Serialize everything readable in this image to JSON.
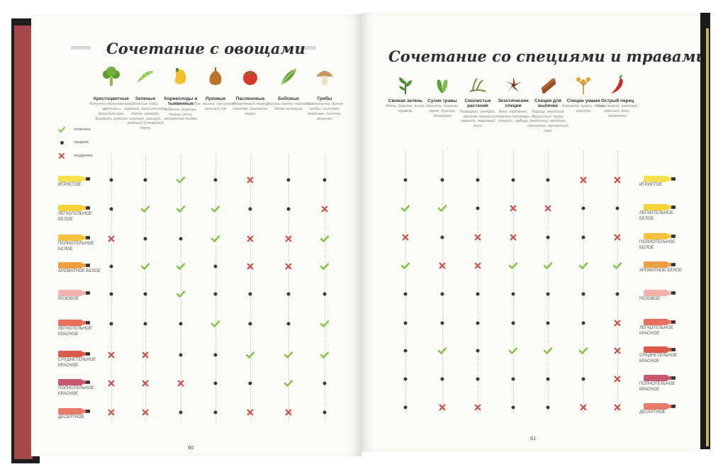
{
  "left_page": {
    "title": "Сочетание с овощами",
    "page_number": "60",
    "columns": [
      {
        "icon": "broccoli-icon",
        "name": "Крестоцветные",
        "desc": "Капуста обыкновенная, цветная и брюссельская, брокколи, руккола"
      },
      {
        "icon": "green-beans-icon",
        "name": "Зеленые",
        "desc": "Зеленые бобы, горошек, капуста кейл, латук, авокадо, шпинат, цикорий, зеленый болгарский перец"
      },
      {
        "icon": "squash-icon",
        "name": "Корнеплоды и тыквенные",
        "desc": "Кабачок, морковь, тыква, репа, мускатная тыква"
      },
      {
        "icon": "onion-icon",
        "name": "Луковые",
        "desc": "Лук, чеснок, лук-шалот, зеленый лук"
      },
      {
        "icon": "tomato-icon",
        "name": "Пасленовые",
        "desc": "Стручковый перец, помидор, баклажан, перец"
      },
      {
        "icon": "pea-pod-icon",
        "name": "Бобовые",
        "desc": "Фасоль пинто, черная и белая чечевица"
      },
      {
        "icon": "mushroom-icon",
        "name": "Грибы",
        "desc": "Шампиньоны, белые грибы, шиитаке, майтаке, лисички, вешенки"
      }
    ],
    "legend": [
      {
        "mark": "check",
        "label": "отличное"
      },
      {
        "mark": "dot",
        "label": "среднее"
      },
      {
        "mark": "cross",
        "label": "неудачное"
      }
    ],
    "rows": [
      {
        "wine": "ИГРИСТОЕ",
        "marks": [
          "dot",
          "dot",
          "check",
          "dot",
          "cross",
          "dot",
          "dot"
        ]
      },
      {
        "wine": "ЛЕГКОТЕЛЬНОЕ БЕЛОЕ",
        "marks": [
          "dot",
          "check",
          "check",
          "check",
          "dot",
          "dot",
          "cross"
        ]
      },
      {
        "wine": "ПОЛНОТЕЛЬНОЕ БЕЛОЕ",
        "marks": [
          "cross",
          "dot",
          "dot",
          "check",
          "cross",
          "cross",
          "check"
        ]
      },
      {
        "wine": "АРОМАТНОЕ БЕЛОЕ",
        "marks": [
          "dot",
          "check",
          "check",
          "dot",
          "cross",
          "cross",
          "check"
        ]
      },
      {
        "wine": "РОЗОВОЕ",
        "marks": [
          "dot",
          "dot",
          "check",
          "dot",
          "dot",
          "dot",
          "dot"
        ]
      },
      {
        "wine": "ЛЕГКОТЕЛЬНОЕ КРАСНОЕ",
        "marks": [
          "dot",
          "dot",
          "dot",
          "check",
          "dot",
          "dot",
          "check"
        ]
      },
      {
        "wine": "СРЕДНЕТЕЛЬНОЕ КРАСНОЕ",
        "marks": [
          "cross",
          "cross",
          "dot",
          "dot",
          "check",
          "check",
          "check"
        ]
      },
      {
        "wine": "ПОЛНОТЕЛЬНОЕ КРАСНОЕ",
        "marks": [
          "cross",
          "cross",
          "cross",
          "dot",
          "dot",
          "check",
          "dot"
        ]
      },
      {
        "wine": "ДЕСЕРТНОЕ",
        "marks": [
          "cross",
          "cross",
          "dot",
          "dot",
          "cross",
          "cross",
          "dot"
        ]
      }
    ]
  },
  "right_page": {
    "title": "Сочетание со специями и травами",
    "page_number": "61",
    "columns": [
      {
        "icon": "fresh-herbs-icon",
        "name": "Свежая зелень",
        "desc": "Мята, базилик, кинза, кервель"
      },
      {
        "icon": "dry-herbs-icon",
        "name": "Сухие травы",
        "desc": "Орегано, тимьян, укроп, душица, петрушка"
      },
      {
        "icon": "resin-herbs-icon",
        "name": "Смолистые растения",
        "desc": "Розмарин, шалфей, хвойное дерево, лаванда, лавровый лист"
      },
      {
        "icon": "star-anise-icon",
        "name": "Экзотические специи",
        "desc": "Анис, кардамон, китайская приправа «5 специй», имбирь"
      },
      {
        "icon": "cinnamon-icon",
        "name": "Специи для выпечки",
        "desc": "Корица, ямайский душистый перец (гвоздика), гвоздика, пажитник, мускатный орех"
      },
      {
        "icon": "umami-spice-icon",
        "name": "Специи умами",
        "desc": "Кориандр, кумин, тмин, куркума"
      },
      {
        "icon": "chili-pepper-icon",
        "name": "Острый перец",
        "desc": "Стручковый, алепский, красный, анис, халапеньо"
      }
    ],
    "rows": [
      {
        "wine": "ИГРИСТОЕ",
        "marks": [
          "dot",
          "dot",
          "dot",
          "dot",
          "dot",
          "cross",
          "cross"
        ]
      },
      {
        "wine": "ЛЕГКОТЕЛЬНОЕ БЕЛОЕ",
        "marks": [
          "check",
          "check",
          "dot",
          "cross",
          "cross",
          "dot",
          "dot"
        ]
      },
      {
        "wine": "ПОЛНОТЕЛЬНОЕ БЕЛОЕ",
        "marks": [
          "cross",
          "dot",
          "cross",
          "cross",
          "dot",
          "dot",
          "cross"
        ]
      },
      {
        "wine": "АРОМАТНОЕ БЕЛОЕ",
        "marks": [
          "check",
          "cross",
          "cross",
          "check",
          "check",
          "check",
          "check"
        ]
      },
      {
        "wine": "РОЗОВОЕ",
        "marks": [
          "dot",
          "dot",
          "dot",
          "dot",
          "dot",
          "dot",
          "dot"
        ]
      },
      {
        "wine": "ЛЕГКОТЕЛЬНОЕ КРАСНОЕ",
        "marks": [
          "dot",
          "dot",
          "dot",
          "dot",
          "dot",
          "dot",
          "cross"
        ]
      },
      {
        "wine": "СРЕДНЕТЕЛЬНОЕ КРАСНОЕ",
        "marks": [
          "dot",
          "check",
          "dot",
          "check",
          "check",
          "check",
          "cross"
        ]
      },
      {
        "wine": "ПОЛНОТЕЛЬНОЕ КРАСНОЕ",
        "marks": [
          "dot",
          "dot",
          "dot",
          "dot",
          "dot",
          "dot",
          "cross"
        ]
      },
      {
        "wine": "ДЕСЕРТНОЕ",
        "marks": [
          "dot",
          "cross",
          "cross",
          "dot",
          "dot",
          "cross",
          "cross"
        ]
      }
    ]
  },
  "colors": {
    "check": "#7fc241",
    "cross": "#c8554a",
    "dot": "#3a3a3a",
    "wines": [
      "#f2e04d",
      "#f5d23a",
      "#f3c340",
      "#ef9f43",
      "#f3b0ac",
      "#e8705e",
      "#db5a4c",
      "#c9586e",
      "#e97b6b"
    ]
  }
}
